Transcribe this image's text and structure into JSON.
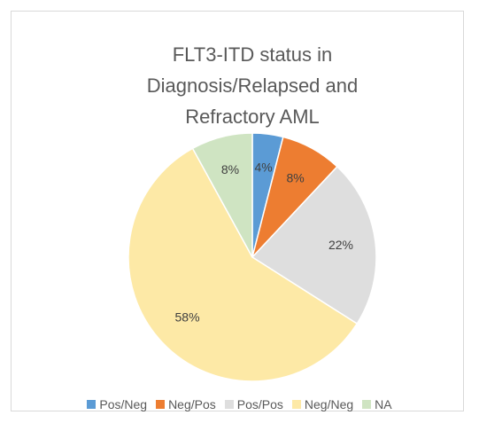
{
  "chart_data": {
    "type": "pie",
    "title": "FLT3-ITD status in Diagnosis/Relapsed and Refractory AML",
    "categories": [
      "Pos/Neg",
      "Neg/Pos",
      "Pos/Pos",
      "Neg/Neg",
      "NA"
    ],
    "values": [
      4,
      8,
      22,
      58,
      8
    ],
    "value_labels": [
      "4%",
      "8%",
      "22%",
      "58%",
      "8%"
    ],
    "colors": [
      "#5b9bd5",
      "#ed7d31",
      "#dedede",
      "#fde9a6",
      "#cfe4c2"
    ],
    "legend": "bottom"
  }
}
